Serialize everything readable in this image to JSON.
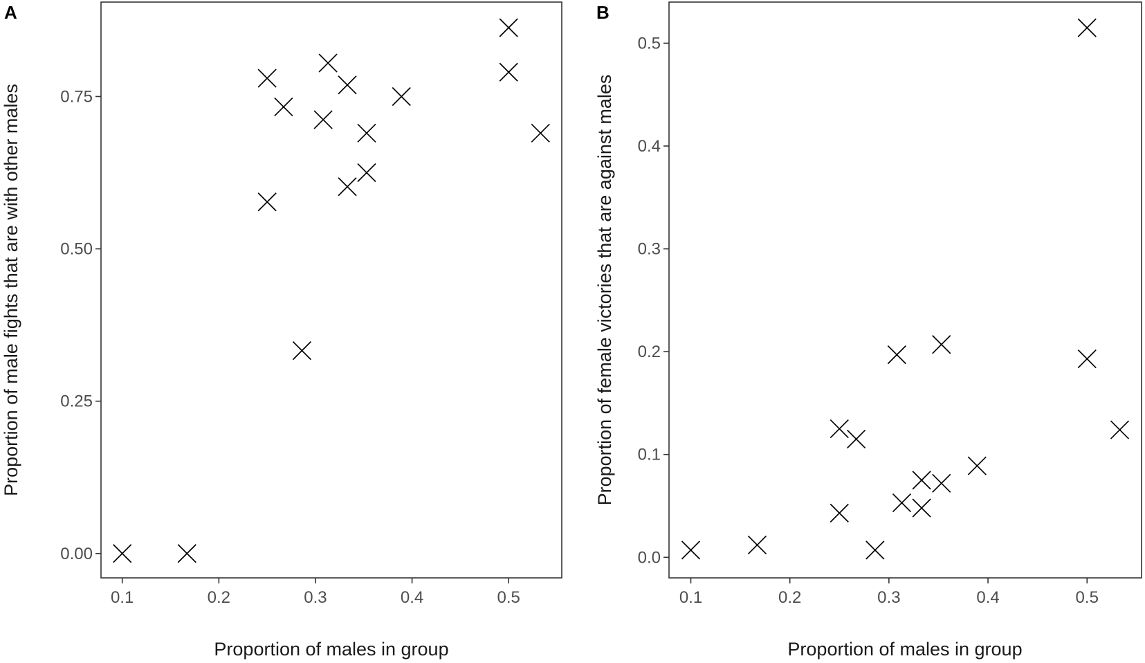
{
  "chart_data": [
    {
      "type": "scatter",
      "panel_label": "A",
      "xlabel": "Proportion of males in group",
      "ylabel": "Proportion of male fights that are with other males",
      "xlim": [
        0.078,
        0.555
      ],
      "ylim": [
        -0.04,
        0.905
      ],
      "xticks": [
        0.1,
        0.2,
        0.3,
        0.4,
        0.5
      ],
      "xtick_labels": [
        "0.1",
        "0.2",
        "0.3",
        "0.4",
        "0.5"
      ],
      "yticks": [
        0.0,
        0.25,
        0.5,
        0.75
      ],
      "ytick_labels": [
        "0.00",
        "0.25",
        "0.50",
        "0.75"
      ],
      "marker": "x",
      "grid": false,
      "points": [
        {
          "x": 0.1,
          "y": 0.0
        },
        {
          "x": 0.167,
          "y": 0.0
        },
        {
          "x": 0.25,
          "y": 0.78
        },
        {
          "x": 0.25,
          "y": 0.577
        },
        {
          "x": 0.267,
          "y": 0.733
        },
        {
          "x": 0.286,
          "y": 0.333
        },
        {
          "x": 0.308,
          "y": 0.712
        },
        {
          "x": 0.313,
          "y": 0.805
        },
        {
          "x": 0.333,
          "y": 0.769
        },
        {
          "x": 0.333,
          "y": 0.602
        },
        {
          "x": 0.353,
          "y": 0.69
        },
        {
          "x": 0.353,
          "y": 0.625
        },
        {
          "x": 0.389,
          "y": 0.75
        },
        {
          "x": 0.5,
          "y": 0.863
        },
        {
          "x": 0.5,
          "y": 0.79
        },
        {
          "x": 0.533,
          "y": 0.69
        }
      ]
    },
    {
      "type": "scatter",
      "panel_label": "B",
      "xlabel": "Proportion of males in group",
      "ylabel": "Proportion of female victories that are against males",
      "xlim": [
        0.078,
        0.555
      ],
      "ylim": [
        -0.02,
        0.54
      ],
      "xticks": [
        0.1,
        0.2,
        0.3,
        0.4,
        0.5
      ],
      "xtick_labels": [
        "0.1",
        "0.2",
        "0.3",
        "0.4",
        "0.5"
      ],
      "yticks": [
        0.0,
        0.1,
        0.2,
        0.3,
        0.4,
        0.5
      ],
      "ytick_labels": [
        "0.0",
        "0.1",
        "0.2",
        "0.3",
        "0.4",
        "0.5"
      ],
      "marker": "x",
      "grid": false,
      "points": [
        {
          "x": 0.1,
          "y": 0.007
        },
        {
          "x": 0.167,
          "y": 0.012
        },
        {
          "x": 0.25,
          "y": 0.125
        },
        {
          "x": 0.25,
          "y": 0.043
        },
        {
          "x": 0.267,
          "y": 0.115
        },
        {
          "x": 0.286,
          "y": 0.007
        },
        {
          "x": 0.308,
          "y": 0.197
        },
        {
          "x": 0.313,
          "y": 0.053
        },
        {
          "x": 0.333,
          "y": 0.075
        },
        {
          "x": 0.333,
          "y": 0.048
        },
        {
          "x": 0.353,
          "y": 0.207
        },
        {
          "x": 0.353,
          "y": 0.072
        },
        {
          "x": 0.389,
          "y": 0.089
        },
        {
          "x": 0.5,
          "y": 0.515
        },
        {
          "x": 0.5,
          "y": 0.193
        },
        {
          "x": 0.533,
          "y": 0.124
        }
      ]
    }
  ],
  "colors": {
    "marker": "#000000",
    "frame": "#333333",
    "tick_text": "#4d4d4d",
    "axis_title_text": "#1a1a1a",
    "background": "#ffffff"
  }
}
